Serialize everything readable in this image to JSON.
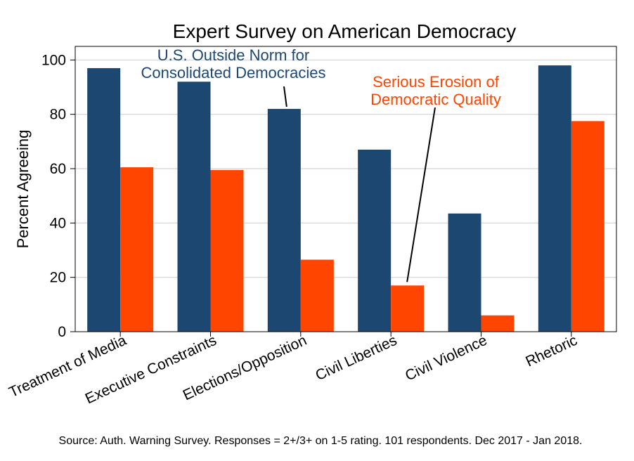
{
  "chart_data": {
    "type": "bar",
    "title": "Expert Survey on American Democracy",
    "ylabel": "Percent Agreeing",
    "xlabel": "",
    "ylim": [
      0,
      105
    ],
    "yticks": [
      0,
      20,
      40,
      60,
      80,
      100
    ],
    "grid": true,
    "categories": [
      "Treatment of Media",
      "Executive Constraints",
      "Elections/Opposition",
      "Civil Liberties",
      "Civil Violence",
      "Rhetoric"
    ],
    "series": [
      {
        "name": "U.S. Outside Norm for Consolidated Democracies",
        "color": "#1c4770",
        "values": [
          97,
          92,
          82,
          67,
          43.5,
          98
        ]
      },
      {
        "name": "Serious Erosion of Democratic Quality",
        "color": "#ff4500",
        "values": [
          60.5,
          59.5,
          26.5,
          17,
          6,
          77.5
        ]
      }
    ],
    "annotations": [
      {
        "lines": [
          "U.S. Outside Norm for",
          "Consolidated Democracies"
        ],
        "color": "#1c4770",
        "points_to": {
          "category": 2,
          "series": 0
        }
      },
      {
        "lines": [
          "Serious Erosion of",
          "Democratic Quality"
        ],
        "color": "#ff4500",
        "points_to": {
          "category": 3,
          "series": 1
        }
      }
    ],
    "source": "Source: Auth. Warning Survey. Responses = 2+/3+ on 1-5 rating. 101 respondents. Dec 2017 - Jan 2018."
  }
}
